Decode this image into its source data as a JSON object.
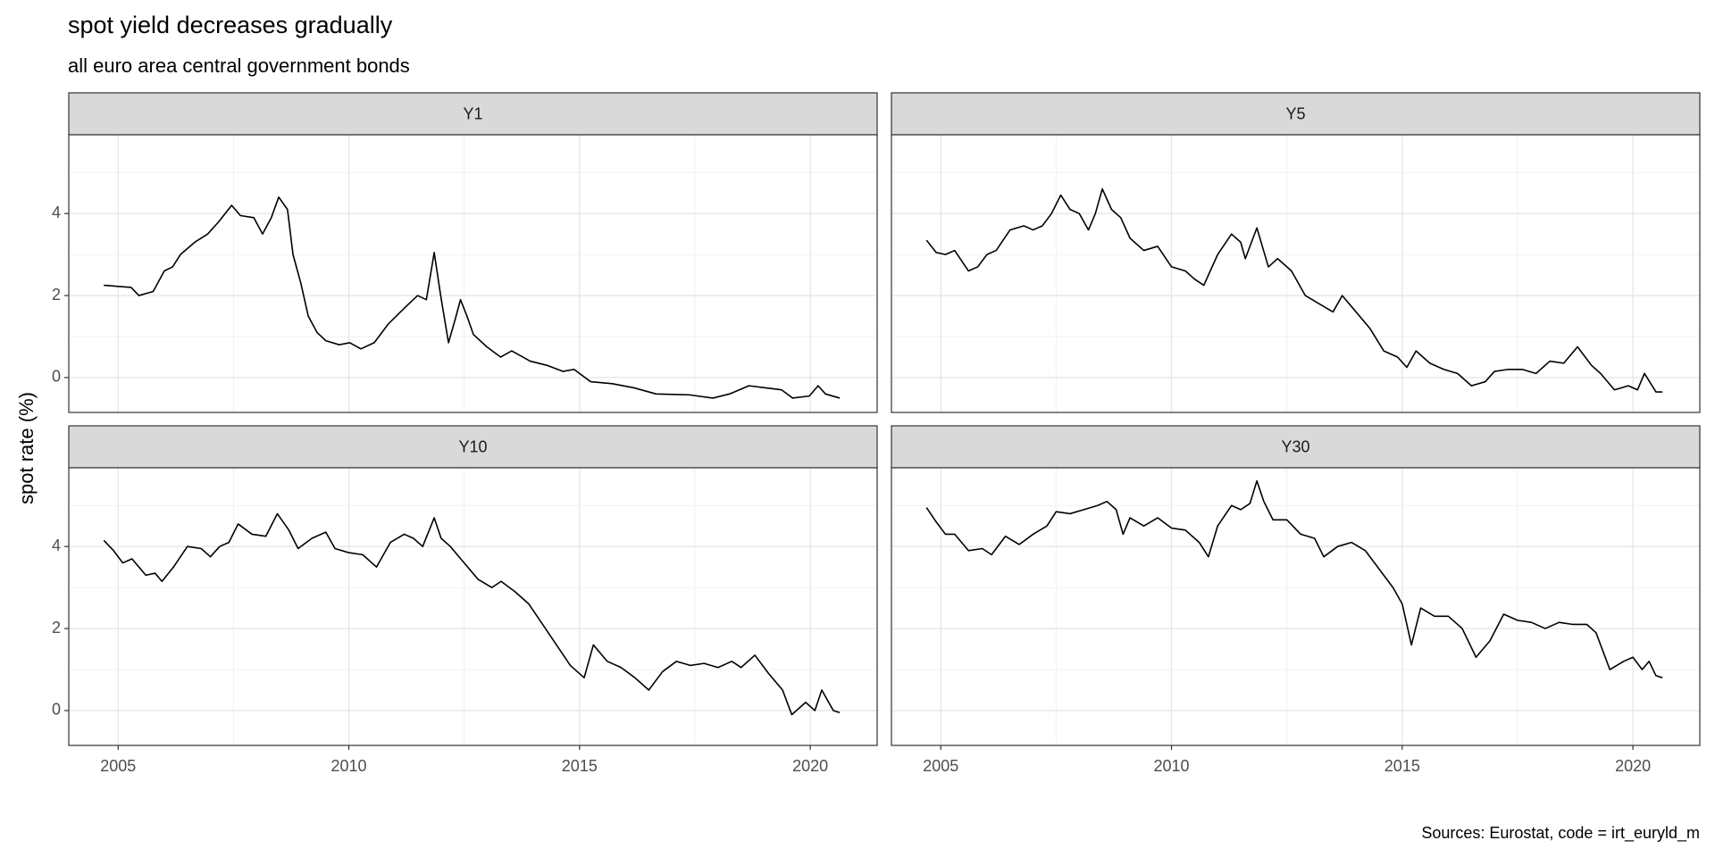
{
  "chart_data": {
    "type": "line",
    "title": "spot yield decreases gradually",
    "subtitle": "all euro area central government bonds",
    "y_label": "spot rate (%)",
    "caption": "Sources: Eurostat, code = irt_euryld_m",
    "color": "#000000",
    "grid": true,
    "xlim": [
      2003.93,
      2021.45
    ],
    "xticks": [
      2005,
      2010,
      2015,
      2020
    ],
    "ylim": [
      -0.85,
      5.92
    ],
    "yticks": [
      0,
      2,
      4
    ],
    "panels": [
      {
        "name": "Y1",
        "x": [
          2004.69,
          2005.28,
          2005.45,
          2005.76,
          2006.0,
          2006.18,
          2006.35,
          2006.66,
          2006.94,
          2007.18,
          2007.46,
          2007.65,
          2007.94,
          2008.13,
          2008.32,
          2008.48,
          2008.67,
          2008.79,
          2008.96,
          2009.12,
          2009.31,
          2009.5,
          2009.79,
          2010.02,
          2010.26,
          2010.55,
          2010.85,
          2011.21,
          2011.49,
          2011.68,
          2011.85,
          2011.99,
          2012.16,
          2012.3,
          2012.42,
          2012.56,
          2012.7,
          2012.99,
          2013.29,
          2013.53,
          2013.93,
          2014.29,
          2014.64,
          2014.88,
          2015.24,
          2015.71,
          2016.18,
          2016.66,
          2017.37,
          2017.89,
          2018.25,
          2018.67,
          2019.03,
          2019.38,
          2019.62,
          2019.98,
          2020.17,
          2020.33,
          2020.64
        ],
        "values": [
          2.25,
          2.2,
          2.0,
          2.1,
          2.6,
          2.7,
          3.0,
          3.3,
          3.5,
          3.8,
          4.2,
          3.95,
          3.9,
          3.5,
          3.9,
          4.4,
          4.1,
          3.0,
          2.3,
          1.5,
          1.1,
          0.9,
          0.8,
          0.85,
          0.7,
          0.85,
          1.3,
          1.7,
          2.0,
          1.9,
          3.05,
          2.0,
          0.85,
          1.4,
          1.9,
          1.5,
          1.05,
          0.75,
          0.5,
          0.65,
          0.4,
          0.3,
          0.15,
          0.2,
          -0.1,
          -0.15,
          -0.25,
          -0.4,
          -0.42,
          -0.5,
          -0.4,
          -0.2,
          -0.25,
          -0.3,
          -0.5,
          -0.45,
          -0.2,
          -0.4,
          -0.5
        ]
      },
      {
        "name": "Y5",
        "x": [
          2004.69,
          2004.9,
          2005.1,
          2005.3,
          2005.6,
          2005.8,
          2006.0,
          2006.2,
          2006.5,
          2006.8,
          2007.0,
          2007.2,
          2007.4,
          2007.6,
          2007.8,
          2008.0,
          2008.2,
          2008.35,
          2008.5,
          2008.7,
          2008.9,
          2009.1,
          2009.4,
          2009.7,
          2010.0,
          2010.3,
          2010.5,
          2010.7,
          2011.0,
          2011.3,
          2011.5,
          2011.6,
          2011.85,
          2012.1,
          2012.3,
          2012.6,
          2012.9,
          2013.2,
          2013.5,
          2013.7,
          2014.0,
          2014.3,
          2014.6,
          2014.9,
          2015.1,
          2015.3,
          2015.6,
          2015.9,
          2016.2,
          2016.5,
          2016.8,
          2017.0,
          2017.3,
          2017.6,
          2017.9,
          2018.2,
          2018.5,
          2018.8,
          2019.1,
          2019.3,
          2019.6,
          2019.9,
          2020.1,
          2020.25,
          2020.5,
          2020.64
        ],
        "values": [
          3.35,
          3.05,
          3.0,
          3.1,
          2.6,
          2.7,
          3.0,
          3.1,
          3.6,
          3.7,
          3.6,
          3.7,
          4.0,
          4.45,
          4.1,
          4.0,
          3.6,
          4.0,
          4.6,
          4.1,
          3.9,
          3.4,
          3.1,
          3.2,
          2.7,
          2.6,
          2.4,
          2.25,
          3.0,
          3.5,
          3.3,
          2.9,
          3.65,
          2.7,
          2.9,
          2.6,
          2.0,
          1.8,
          1.6,
          2.0,
          1.6,
          1.2,
          0.65,
          0.5,
          0.25,
          0.65,
          0.35,
          0.2,
          0.1,
          -0.2,
          -0.1,
          0.15,
          0.2,
          0.2,
          0.1,
          0.4,
          0.35,
          0.75,
          0.3,
          0.1,
          -0.3,
          -0.2,
          -0.3,
          0.1,
          -0.35,
          -0.35
        ]
      },
      {
        "name": "Y10",
        "x": [
          2004.69,
          2004.9,
          2005.1,
          2005.3,
          2005.6,
          2005.8,
          2005.95,
          2006.2,
          2006.5,
          2006.8,
          2007.0,
          2007.2,
          2007.4,
          2007.6,
          2007.9,
          2008.2,
          2008.45,
          2008.7,
          2008.9,
          2009.2,
          2009.5,
          2009.7,
          2010.0,
          2010.3,
          2010.6,
          2010.9,
          2011.2,
          2011.4,
          2011.6,
          2011.85,
          2012.0,
          2012.2,
          2012.5,
          2012.8,
          2013.1,
          2013.3,
          2013.6,
          2013.9,
          2014.2,
          2014.5,
          2014.8,
          2015.1,
          2015.3,
          2015.6,
          2015.9,
          2016.2,
          2016.5,
          2016.8,
          2017.1,
          2017.4,
          2017.7,
          2018.0,
          2018.3,
          2018.5,
          2018.8,
          2019.1,
          2019.4,
          2019.6,
          2019.9,
          2020.1,
          2020.25,
          2020.5,
          2020.64
        ],
        "values": [
          4.15,
          3.9,
          3.6,
          3.7,
          3.3,
          3.35,
          3.15,
          3.5,
          4.0,
          3.95,
          3.75,
          4.0,
          4.1,
          4.55,
          4.3,
          4.25,
          4.8,
          4.4,
          3.95,
          4.2,
          4.35,
          3.95,
          3.85,
          3.8,
          3.5,
          4.1,
          4.3,
          4.2,
          4.0,
          4.7,
          4.2,
          4.0,
          3.6,
          3.2,
          3.0,
          3.15,
          2.9,
          2.6,
          2.1,
          1.6,
          1.1,
          0.8,
          1.6,
          1.2,
          1.05,
          0.8,
          0.5,
          0.95,
          1.2,
          1.1,
          1.15,
          1.05,
          1.2,
          1.05,
          1.35,
          0.9,
          0.5,
          -0.1,
          0.2,
          0.0,
          0.5,
          0.0,
          -0.05
        ]
      },
      {
        "name": "Y30",
        "x": [
          2004.69,
          2004.9,
          2005.1,
          2005.3,
          2005.6,
          2005.9,
          2006.1,
          2006.4,
          2006.7,
          2007.0,
          2007.3,
          2007.5,
          2007.8,
          2008.1,
          2008.4,
          2008.6,
          2008.8,
          2008.95,
          2009.1,
          2009.4,
          2009.7,
          2010.0,
          2010.3,
          2010.6,
          2010.8,
          2011.0,
          2011.3,
          2011.5,
          2011.7,
          2011.85,
          2012.0,
          2012.2,
          2012.5,
          2012.8,
          2013.1,
          2013.3,
          2013.6,
          2013.9,
          2014.2,
          2014.5,
          2014.8,
          2015.0,
          2015.2,
          2015.4,
          2015.7,
          2016.0,
          2016.3,
          2016.6,
          2016.9,
          2017.2,
          2017.5,
          2017.8,
          2018.1,
          2018.4,
          2018.7,
          2019.0,
          2019.2,
          2019.5,
          2019.8,
          2020.0,
          2020.2,
          2020.35,
          2020.5,
          2020.64
        ],
        "values": [
          4.95,
          4.6,
          4.3,
          4.3,
          3.9,
          3.95,
          3.8,
          4.25,
          4.05,
          4.3,
          4.5,
          4.85,
          4.8,
          4.9,
          5.0,
          5.1,
          4.9,
          4.3,
          4.7,
          4.5,
          4.7,
          4.45,
          4.4,
          4.1,
          3.75,
          4.5,
          5.0,
          4.9,
          5.05,
          5.6,
          5.1,
          4.65,
          4.65,
          4.3,
          4.2,
          3.75,
          4.0,
          4.1,
          3.9,
          3.45,
          3.0,
          2.6,
          1.6,
          2.5,
          2.3,
          2.3,
          2.0,
          1.3,
          1.7,
          2.35,
          2.2,
          2.15,
          2.0,
          2.15,
          2.1,
          2.1,
          1.9,
          1.0,
          1.2,
          1.3,
          1.0,
          1.2,
          0.85,
          0.8
        ]
      }
    ]
  }
}
